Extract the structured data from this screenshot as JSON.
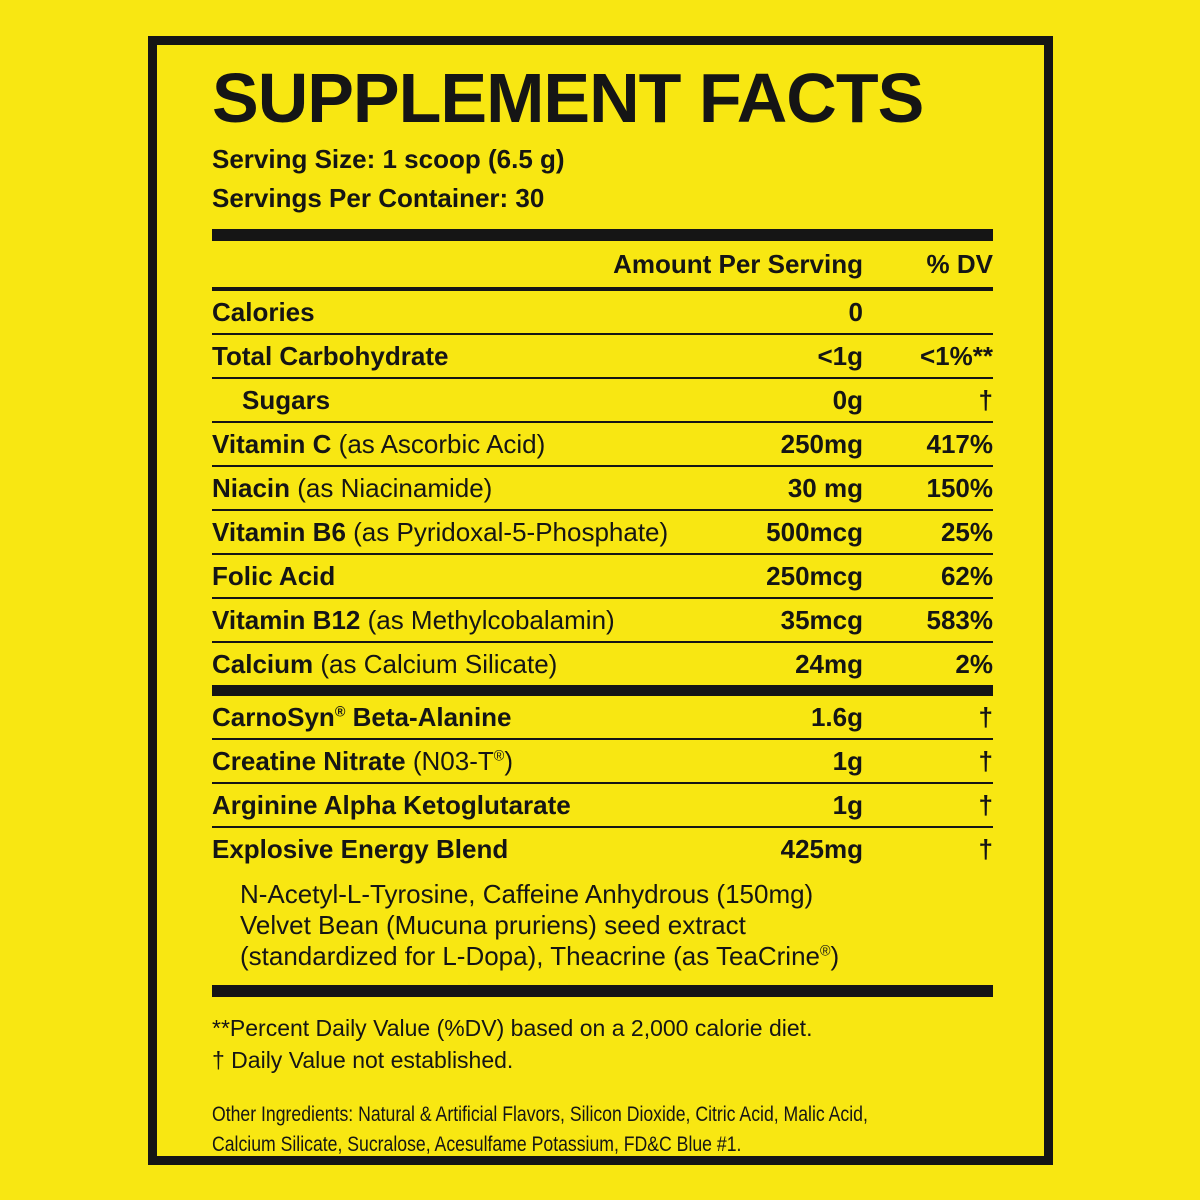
{
  "colors": {
    "background": "#F8E712",
    "ink": "#151515"
  },
  "header": {
    "title": "SUPPLEMENT FACTS",
    "serving_size": "Serving Size: 1 scoop (6.5 g)",
    "servings_per_container": "Servings Per Container: 30"
  },
  "table": {
    "columns": {
      "amount": "Amount Per Serving",
      "dv": "% DV"
    },
    "rows": [
      {
        "name": "Calories",
        "detail": "",
        "amount": "0",
        "dv": "",
        "indent": false,
        "sep_after": "thin"
      },
      {
        "name": "Total Carbohydrate",
        "detail": "",
        "amount": "<1g",
        "dv": "<1%**",
        "indent": false,
        "sep_after": "thin"
      },
      {
        "name": "Sugars",
        "detail": "",
        "amount": "0g",
        "dv": "†",
        "indent": true,
        "sep_after": "thin"
      },
      {
        "name": "Vitamin C",
        "detail": "(as Ascorbic Acid)",
        "amount": "250mg",
        "dv": "417%",
        "indent": false,
        "sep_after": "thin"
      },
      {
        "name": "Niacin",
        "detail": "(as Niacinamide)",
        "amount": "30 mg",
        "dv": "150%",
        "indent": false,
        "sep_after": "thin"
      },
      {
        "name": "Vitamin B6",
        "detail": "(as Pyridoxal-5-Phosphate)",
        "amount": "500mcg",
        "dv": "25%",
        "indent": false,
        "sep_after": "thin"
      },
      {
        "name": "Folic Acid",
        "detail": "",
        "amount": "250mcg",
        "dv": "62%",
        "indent": false,
        "sep_after": "thin"
      },
      {
        "name": "Vitamin B12",
        "detail": "(as Methylcobalamin)",
        "amount": "35mcg",
        "dv": "583%",
        "indent": false,
        "sep_after": "thin"
      },
      {
        "name": "Calcium",
        "detail": "(as Calcium Silicate)",
        "amount": "24mg",
        "dv": "2%",
        "indent": false,
        "sep_after": "thick"
      },
      {
        "name": "CarnoSyn® Beta-Alanine",
        "detail": "",
        "amount": "1.6g",
        "dv": "†",
        "indent": false,
        "sep_after": "thin"
      },
      {
        "name": "Creatine Nitrate",
        "detail": "(N03-T®)",
        "amount": "1g",
        "dv": "†",
        "indent": false,
        "sep_after": "thin"
      },
      {
        "name": "Arginine Alpha Ketoglutarate",
        "detail": "",
        "amount": "1g",
        "dv": "†",
        "indent": false,
        "sep_after": "thin"
      },
      {
        "name": "Explosive Energy Blend",
        "detail": "",
        "amount": "425mg",
        "dv": "†",
        "indent": false,
        "sep_after": "none"
      }
    ],
    "blend_description_lines": [
      "N-Acetyl-L-Tyrosine, Caffeine Anhydrous (150mg)",
      "Velvet Bean (Mucuna pruriens) seed extract",
      "(standardized for L-Dopa), Theacrine (as TeaCrine®)"
    ]
  },
  "footnotes": {
    "percent_dv": "**Percent Daily Value (%DV) based on a 2,000 calorie diet.",
    "daily_value": "† Daily Value not established."
  },
  "other_ingredients_lines": [
    "Other Ingredients: Natural & Artificial Flavors, Silicon Dioxide, Citric Acid, Malic Acid,",
    "Calcium Silicate, Sucralose, Acesulfame Potassium, FD&C Blue #1."
  ]
}
